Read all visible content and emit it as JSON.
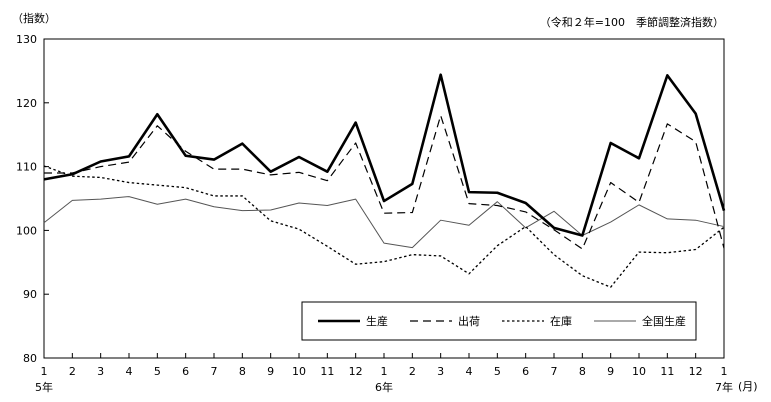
{
  "chart_data": {
    "type": "line",
    "title": "",
    "note": "（令和２年=100　季節調整済指数）",
    "ylabel": "（指数）",
    "xunit": "(月)",
    "ylim": [
      80,
      130
    ],
    "yticks": [
      80,
      90,
      100,
      110,
      120,
      130
    ],
    "grid": false,
    "legend_position": "bottom-right",
    "categories": [
      "1",
      "2",
      "3",
      "4",
      "5",
      "6",
      "7",
      "8",
      "9",
      "10",
      "11",
      "12",
      "1",
      "2",
      "3",
      "4",
      "5",
      "6",
      "7",
      "8",
      "9",
      "10",
      "11",
      "12",
      "1"
    ],
    "year_labels": [
      {
        "index": 0,
        "label": "5年"
      },
      {
        "index": 12,
        "label": "6年"
      },
      {
        "index": 24,
        "label": "7年"
      }
    ],
    "series": [
      {
        "name": "生産",
        "color": "#000000",
        "style": "solid-thick",
        "values": [
          108.0,
          108.8,
          110.8,
          111.6,
          118.2,
          111.7,
          111.1,
          113.6,
          109.2,
          111.5,
          109.2,
          116.9,
          104.6,
          107.3,
          124.4,
          106.0,
          105.9,
          104.3,
          100.4,
          99.2,
          113.7,
          111.3,
          124.3,
          118.3,
          103.1
        ]
      },
      {
        "name": "出荷",
        "color": "#000000",
        "style": "dashed",
        "values": [
          109.0,
          109.0,
          110.0,
          110.7,
          116.4,
          112.4,
          109.6,
          109.6,
          108.7,
          109.1,
          107.8,
          113.7,
          102.7,
          102.8,
          118.0,
          104.2,
          103.9,
          102.9,
          100.1,
          97.1,
          107.5,
          104.4,
          116.7,
          113.9,
          97.2
        ]
      },
      {
        "name": "在庫",
        "color": "#000000",
        "style": "dotted",
        "values": [
          110.1,
          108.5,
          108.3,
          107.5,
          107.1,
          106.7,
          105.4,
          105.4,
          101.5,
          100.2,
          97.5,
          94.7,
          95.1,
          96.2,
          96.0,
          93.2,
          97.6,
          100.6,
          96.2,
          92.9,
          91.1,
          96.6,
          96.5,
          97.0,
          100.5
        ]
      },
      {
        "name": "全国生産",
        "color": "#555555",
        "style": "thin",
        "values": [
          101.2,
          104.7,
          104.9,
          105.3,
          104.1,
          104.9,
          103.7,
          103.1,
          103.2,
          104.3,
          103.9,
          104.9,
          98.0,
          97.3,
          101.6,
          100.8,
          104.5,
          100.4,
          103.0,
          99.2,
          101.3,
          104.0,
          101.8,
          101.6,
          100.6
        ]
      }
    ]
  }
}
